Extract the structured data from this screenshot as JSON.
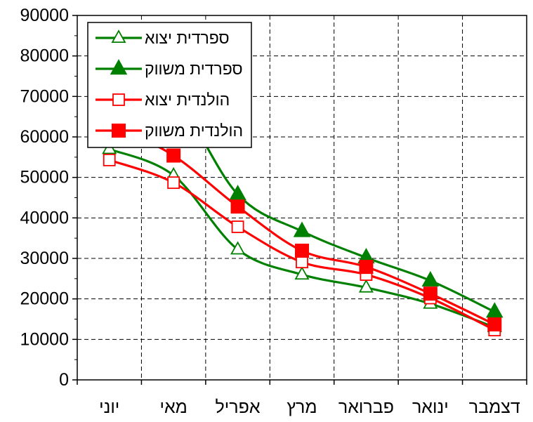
{
  "chart_data": {
    "type": "line",
    "title": "",
    "xlabel": "",
    "ylabel": "",
    "ylim": [
      0,
      90000
    ],
    "yticks": [
      0,
      10000,
      20000,
      30000,
      40000,
      50000,
      60000,
      70000,
      80000,
      90000
    ],
    "grid": true,
    "legend_position": "top-left",
    "categories": [
      "דצמבר",
      "ינואר",
      "פברואר",
      "מרץ",
      "אפריל",
      "מאי",
      "יוני"
    ],
    "series": [
      {
        "name": "ספרדית יצוא",
        "color": "#008000",
        "marker": "triangle-open",
        "values": [
          13000,
          18800,
          22800,
          26000,
          32200,
          50500,
          57000
        ]
      },
      {
        "name": "ספרדית משווק",
        "color": "#008000",
        "marker": "triangle-filled",
        "values": [
          16800,
          24500,
          30200,
          36700,
          45800,
          70300,
          79000
        ]
      },
      {
        "name": "הולנדית יצוא",
        "color": "#ff0000",
        "marker": "square-open",
        "values": [
          12300,
          20200,
          26000,
          29100,
          37800,
          48700,
          54300
        ]
      },
      {
        "name": "הולנדית משווק",
        "color": "#ff0000",
        "marker": "square-filled",
        "values": [
          13700,
          21300,
          27900,
          31900,
          42800,
          55400,
          63300
        ]
      }
    ]
  }
}
